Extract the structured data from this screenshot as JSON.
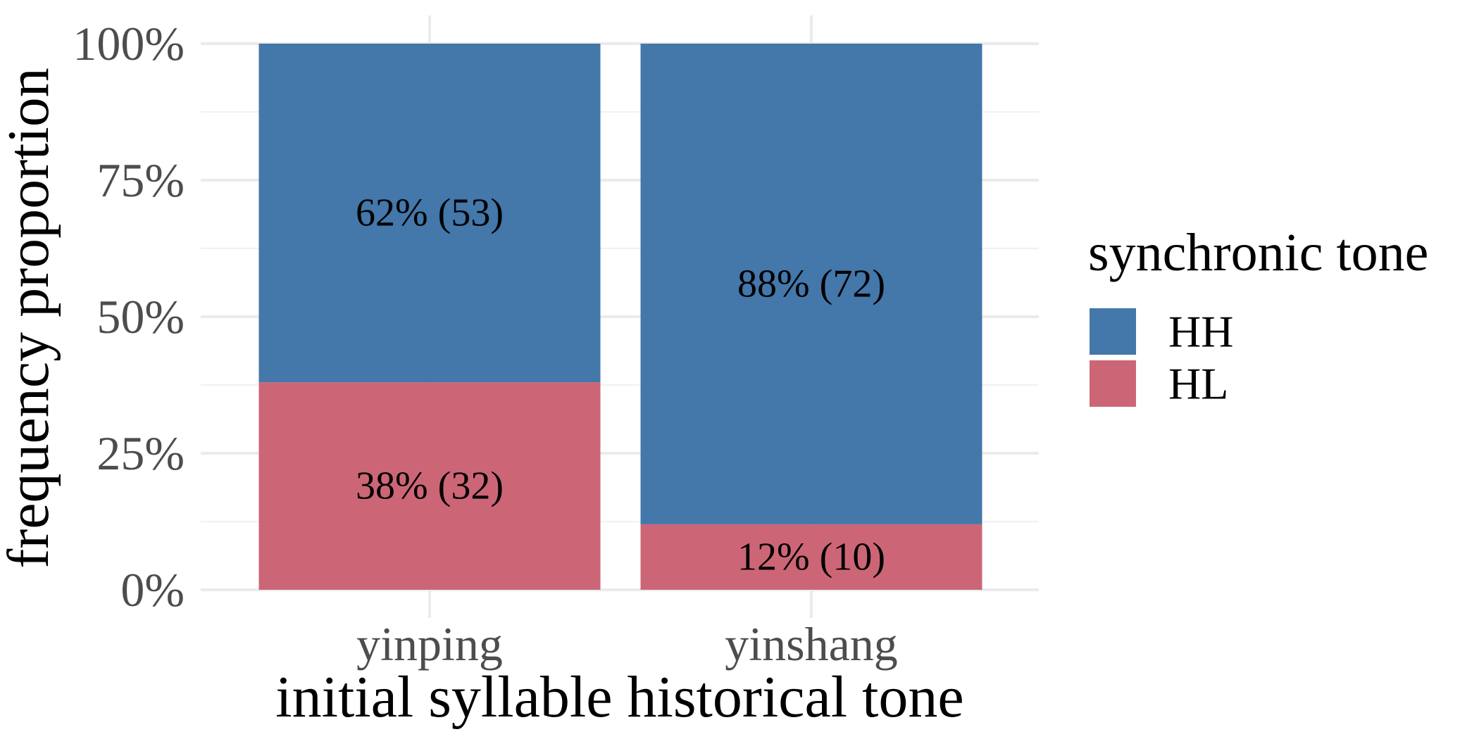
{
  "chart_data": {
    "type": "bar",
    "stacked": true,
    "percent": true,
    "categories": [
      "yinping",
      "yinshang"
    ],
    "series": [
      {
        "name": "HL",
        "color": "#CC6677",
        "values": [
          38,
          12
        ],
        "counts": [
          32,
          10
        ],
        "labels": [
          "38% (32)",
          "12% (10)"
        ]
      },
      {
        "name": "HH",
        "color": "#4477AA",
        "values": [
          62,
          88
        ],
        "counts": [
          53,
          72
        ],
        "labels": [
          "62% (53)",
          "88% (72)"
        ]
      }
    ],
    "xlabel": "initial syllable historical tone",
    "ylabel": "frequency proportion",
    "ylim": [
      0,
      100
    ],
    "yticks": [
      0,
      25,
      50,
      75,
      100
    ],
    "ytick_labels": [
      "0%",
      "25%",
      "50%",
      "75%",
      "100%"
    ],
    "grid": true,
    "legend": {
      "title": "synchronic tone",
      "position": "right",
      "entries": [
        "HH",
        "HL"
      ]
    }
  }
}
